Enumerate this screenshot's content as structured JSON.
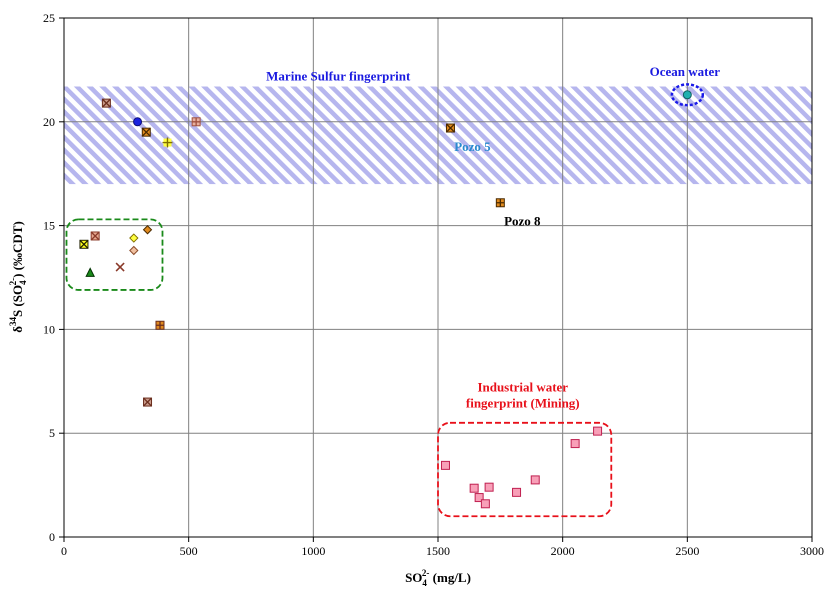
{
  "chart_data": {
    "type": "scatter",
    "xlabel": {
      "main": "SO",
      "sub": "4",
      "sup": "2-",
      "unit": " (mg/L)"
    },
    "ylabel": {
      "sup1": "34",
      "main": "S (SO",
      "sub": "4",
      "sup2": "2-",
      "close": ")",
      "unit": "(‰CDT)"
    },
    "xlim": [
      0,
      3000
    ],
    "ylim": [
      0,
      25
    ],
    "xticks": [
      0,
      500,
      1000,
      1500,
      2000,
      2500,
      3000
    ],
    "yticks": [
      0,
      5,
      10,
      15,
      20,
      25
    ],
    "grid": true,
    "bands": [
      {
        "name": "marine-sulfur-band",
        "x": [
          0,
          3000
        ],
        "y": [
          17,
          21.7
        ],
        "color": "#9a9ae6",
        "pattern": "diagonal-hatch"
      }
    ],
    "regions": [
      {
        "name": "green-cluster-region",
        "x": [
          10,
          395
        ],
        "y": [
          11.9,
          15.3
        ],
        "color": "#1a8a1a",
        "shape": "rounded-rect"
      },
      {
        "name": "industrial-region",
        "x": [
          1500,
          2195
        ],
        "y": [
          1,
          5.5
        ],
        "color": "#e8101a",
        "shape": "rounded-rect"
      },
      {
        "name": "ocean-water-ring",
        "cx": 2500,
        "cy": 21.3,
        "rx": 62,
        "ry": 0.5,
        "color": "#1a1ae8",
        "shape": "ellipse"
      }
    ],
    "points": [
      {
        "x": 170,
        "y": 20.9,
        "marker": "square-x",
        "fill": "#c99a8a",
        "stroke": "#6b2e1e"
      },
      {
        "x": 295,
        "y": 20.0,
        "marker": "circle",
        "fill": "#1a22e0",
        "stroke": "#10107a"
      },
      {
        "x": 330,
        "y": 19.5,
        "marker": "square-x",
        "fill": "#e08a1e",
        "stroke": "#4a2a00"
      },
      {
        "x": 415,
        "y": 19.0,
        "marker": "plus",
        "fill": "#ffff40",
        "stroke": "#807000"
      },
      {
        "x": 530,
        "y": 20.0,
        "marker": "square-plus",
        "fill": "#e8b0a0",
        "stroke": "#a05040"
      },
      {
        "x": 1550,
        "y": 19.7,
        "marker": "square-x",
        "fill": "#e08a1e",
        "stroke": "#4a2a00"
      },
      {
        "x": 1750,
        "y": 16.1,
        "marker": "square-plus",
        "fill": "#e08a1e",
        "stroke": "#4a2a00"
      },
      {
        "x": 2500,
        "y": 21.3,
        "marker": "circle",
        "fill": "#20b0b0",
        "stroke": "#106060"
      },
      {
        "x": 80,
        "y": 14.1,
        "marker": "square-x",
        "fill": "#ffff20",
        "stroke": "#202000"
      },
      {
        "x": 125,
        "y": 14.5,
        "marker": "square-x",
        "fill": "#e8a890",
        "stroke": "#8a3a2a"
      },
      {
        "x": 105,
        "y": 12.7,
        "marker": "triangle",
        "fill": "#1a8a1a",
        "stroke": "#003300"
      },
      {
        "x": 225,
        "y": 13.0,
        "marker": "x",
        "fill": "#e8a890",
        "stroke": "#8a3a2a"
      },
      {
        "x": 280,
        "y": 14.4,
        "marker": "diamond",
        "fill": "#ffff40",
        "stroke": "#807000"
      },
      {
        "x": 280,
        "y": 13.8,
        "marker": "diamond",
        "fill": "#f0c0a0",
        "stroke": "#8a4a2a"
      },
      {
        "x": 335,
        "y": 14.8,
        "marker": "diamond",
        "fill": "#e08a1e",
        "stroke": "#4a2a00"
      },
      {
        "x": 385,
        "y": 10.2,
        "marker": "square-plus",
        "fill": "#e08a1e",
        "stroke": "#6b2e1e"
      },
      {
        "x": 335,
        "y": 6.5,
        "marker": "square-x",
        "fill": "#c99a8a",
        "stroke": "#6b2e1e"
      },
      {
        "x": 1530,
        "y": 3.45,
        "marker": "square",
        "fill": "#f8a0b8",
        "stroke": "#c02050"
      },
      {
        "x": 1645,
        "y": 2.35,
        "marker": "square",
        "fill": "#f8a0b8",
        "stroke": "#c02050"
      },
      {
        "x": 1665,
        "y": 1.9,
        "marker": "square",
        "fill": "#f8a0b8",
        "stroke": "#c02050"
      },
      {
        "x": 1690,
        "y": 1.6,
        "marker": "square",
        "fill": "#f8a0b8",
        "stroke": "#c02050"
      },
      {
        "x": 1705,
        "y": 2.4,
        "marker": "square",
        "fill": "#f8a0b8",
        "stroke": "#c02050"
      },
      {
        "x": 1815,
        "y": 2.15,
        "marker": "square",
        "fill": "#f8a0b8",
        "stroke": "#c02050"
      },
      {
        "x": 1890,
        "y": 2.75,
        "marker": "square",
        "fill": "#f8a0b8",
        "stroke": "#c02050"
      },
      {
        "x": 2050,
        "y": 4.5,
        "marker": "square",
        "fill": "#f8a0b8",
        "stroke": "#c02050"
      },
      {
        "x": 2140,
        "y": 5.1,
        "marker": "square",
        "fill": "#f8a0b8",
        "stroke": "#c02050"
      }
    ],
    "annotations": [
      {
        "name": "marine-sulfur-label",
        "text": "Marine Sulfur fingerprint",
        "x": 1100,
        "y": 22.0,
        "color": "#1a1ae0",
        "anchor": "middle"
      },
      {
        "name": "ocean-water-label",
        "text": "Ocean water",
        "x": 2490,
        "y": 22.2,
        "color": "#1a1ae0",
        "anchor": "middle"
      },
      {
        "name": "pozo5-label",
        "text": "Pozo 5",
        "x": 1565,
        "y": 18.6,
        "color": "#2a8ad0",
        "anchor": "start"
      },
      {
        "name": "pozo8-label",
        "text": "Pozo 8",
        "x": 1765,
        "y": 15.0,
        "color": "#000000",
        "anchor": "start"
      },
      {
        "name": "industrial-label-line1",
        "text": "Industrial water",
        "x": 1840,
        "y": 7.0,
        "color": "#e8101a",
        "anchor": "middle"
      },
      {
        "name": "industrial-label-line2",
        "text": "fingerprint (Mining)",
        "x": 1840,
        "y": 6.25,
        "color": "#e8101a",
        "anchor": "middle"
      }
    ]
  }
}
